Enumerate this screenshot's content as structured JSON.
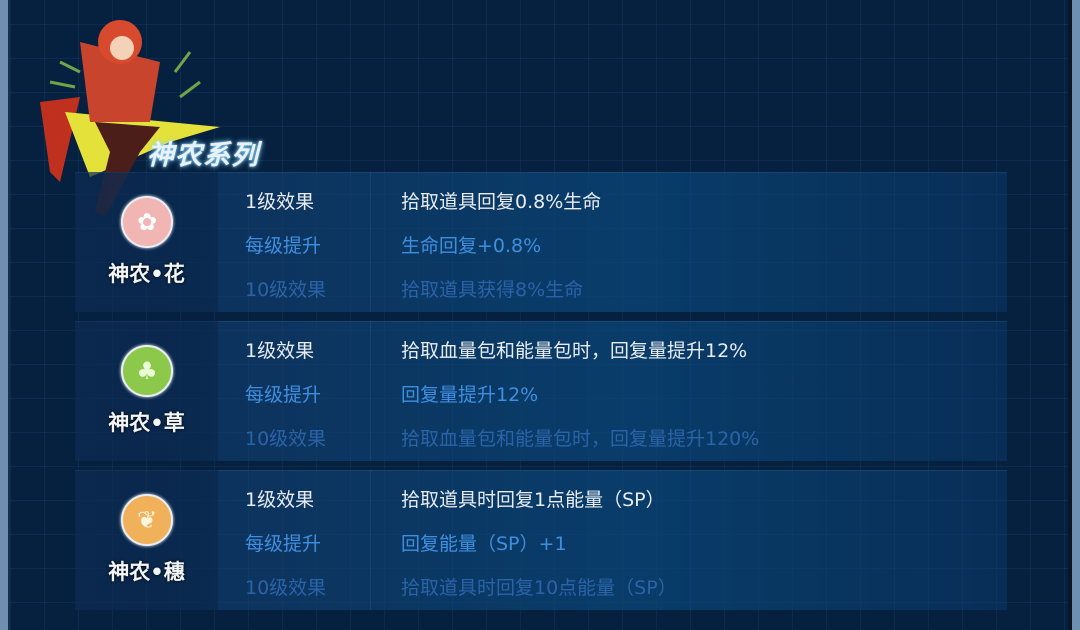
{
  "series_title": "神农系列",
  "colors": {
    "level1": "#e9edf2",
    "per_level": "#3f8fe0",
    "level10": "#2a63a8",
    "panel": "#06203f"
  },
  "items": [
    {
      "name": "神农•花",
      "icon": "flower-badge-icon",
      "icon_color": "#f1b6b4",
      "rows": [
        {
          "label": "1级效果",
          "value": "拾取道具回复0.8%生命"
        },
        {
          "label": "每级提升",
          "value": "生命回复+0.8%"
        },
        {
          "label": "10级效果",
          "value": "拾取道具获得8%生命"
        }
      ]
    },
    {
      "name": "神农•草",
      "icon": "leaf-badge-icon",
      "icon_color": "#8cc94a",
      "rows": [
        {
          "label": "1级效果",
          "value": "拾取血量包和能量包时，回复量提升12%"
        },
        {
          "label": "每级提升",
          "value": "回复量提升12%"
        },
        {
          "label": "10级效果",
          "value": "拾取血量包和能量包时，回复量提升120%"
        }
      ]
    },
    {
      "name": "神农•穗",
      "icon": "wheat-badge-icon",
      "icon_color": "#f0b15a",
      "rows": [
        {
          "label": "1级效果",
          "value": "拾取道具时回复1点能量（SP）"
        },
        {
          "label": "每级提升",
          "value": "回复能量（SP）+1"
        },
        {
          "label": "10级效果",
          "value": "拾取道具时回复10点能量（SP）"
        }
      ]
    }
  ]
}
